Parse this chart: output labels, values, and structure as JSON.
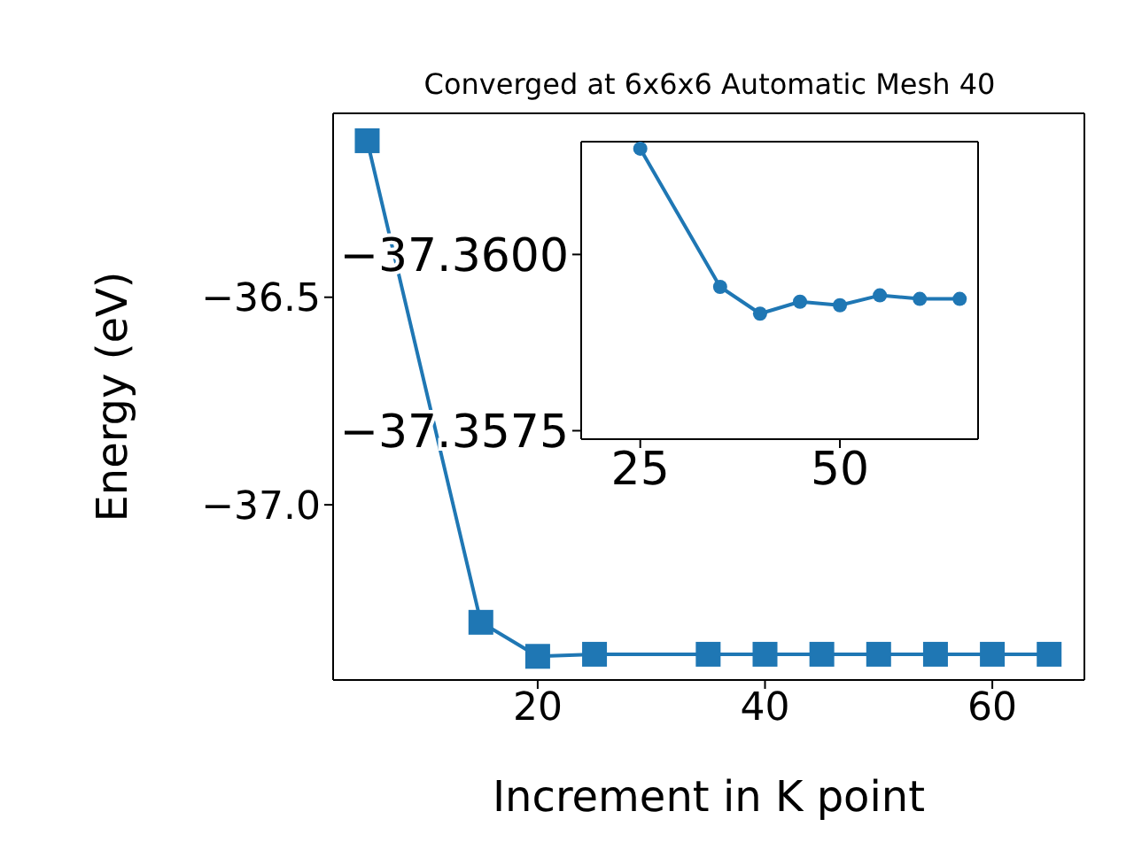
{
  "chart_data": [
    {
      "type": "line",
      "title": "Converged at 6x6x6 Automatic Mesh 40",
      "xlabel": "Increment in K point",
      "ylabel": "Energy (eV)",
      "x": [
        5,
        15,
        20,
        25,
        35,
        40,
        45,
        50,
        55,
        60,
        65
      ],
      "values": [
        -36.123,
        -37.283,
        -37.365,
        -37.36,
        -37.36,
        -37.36,
        -37.36,
        -37.36,
        -37.36,
        -37.36,
        -37.36
      ],
      "color": "#1f77b4",
      "marker": "square",
      "xlim": [
        2.0,
        68.1
      ],
      "xticks": [
        20,
        40,
        60
      ],
      "ylim": [
        -37.422,
        -36.057
      ],
      "yticks": [
        {
          "value": -37.0,
          "label": "−37.0"
        },
        {
          "value": -36.5,
          "label": "−36.5"
        }
      ],
      "grid": false
    },
    {
      "type": "line",
      "x": [
        25,
        35,
        40,
        45,
        50,
        55,
        60,
        65
      ],
      "values": [
        -37.3615,
        -37.35954,
        -37.35916,
        -37.35933,
        -37.35928,
        -37.35942,
        -37.35937,
        -37.35937
      ],
      "color": "#1f77b4",
      "marker": "circle",
      "xlim": [
        17.6,
        67.3
      ],
      "xticks": [
        25,
        50
      ],
      "ylim": [
        -37.35738,
        -37.3616
      ],
      "yticks": [
        {
          "value": -37.3575,
          "label": "−37.3575"
        },
        {
          "value": -37.36,
          "label": "−37.3600"
        }
      ],
      "grid": false
    }
  ]
}
